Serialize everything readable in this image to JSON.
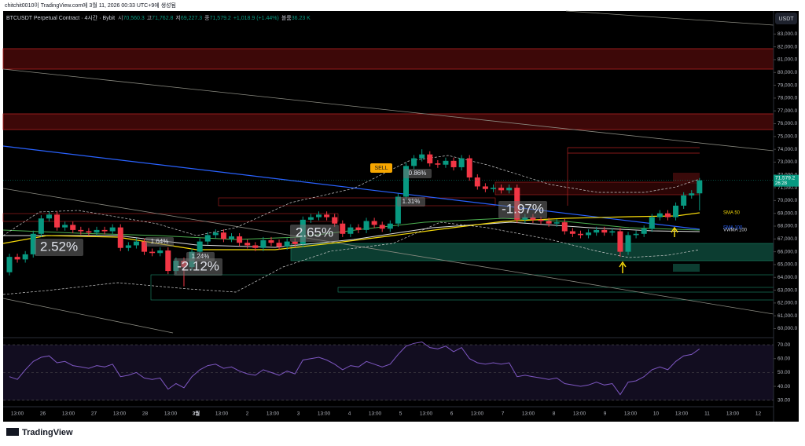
{
  "header": {
    "caption": "chitchit0010이 TradingView.com에 3월 11, 2026 00:33 UTC+9에 생성됨",
    "currency": "USDT",
    "brand": "TradingView"
  },
  "chart_data": {
    "type": "candlestick",
    "title": "BTCUSDT Perpetual Contract · 4시간 · Bybit",
    "legend": {
      "open_label": "시",
      "open": "70,560.3",
      "high_label": "고",
      "high": "71,762.8",
      "low_label": "저",
      "low": "69,227.3",
      "close_label": "종",
      "close": "71,579.2",
      "change": "+1,018.9 (+1.44%)",
      "volume_label": "볼륨",
      "volume": "36.23 K"
    },
    "x_labels": [
      "13:00",
      "26",
      "13:00",
      "27",
      "13:00",
      "28",
      "13:00",
      "3월",
      "13:00",
      "2",
      "13:00",
      "3",
      "13:00",
      "4",
      "13:00",
      "5",
      "13:00",
      "6",
      "13:00",
      "7",
      "13:00",
      "8",
      "13:00",
      "9",
      "13:00",
      "10",
      "13:00",
      "11",
      "13:00",
      "12"
    ],
    "open": [
      64400,
      65600,
      65400,
      65800,
      67400,
      68600,
      68900,
      67900,
      68100,
      67700,
      67600,
      67500,
      67700,
      67600,
      67900,
      66300,
      66500,
      66800,
      66000,
      65900,
      66100,
      64500,
      65300,
      64800,
      66000,
      66800,
      67300,
      67500,
      67000,
      67200,
      66700,
      66500,
      66300,
      66900,
      66700,
      66400,
      66800,
      66600,
      68500,
      68700,
      68900,
      68700,
      68200,
      67400,
      67900,
      67700,
      68400,
      68100,
      67800,
      68200,
      70300,
      72700,
      73300,
      73600,
      72900,
      72800,
      73100,
      72600,
      73300,
      71800,
      71100,
      70900,
      71000,
      70800,
      71000,
      68500,
      68700,
      68500,
      68400,
      68200,
      68300,
      67600,
      67400,
      67300,
      67500,
      67700,
      67500,
      67600,
      66000,
      67300,
      67400,
      67800,
      68700,
      69000,
      68700,
      69600,
      70400,
      70560.3
    ],
    "high": [
      65850,
      65850,
      66050,
      67650,
      68850,
      69150,
      69150,
      68350,
      68350,
      67950,
      67850,
      67950,
      67950,
      68150,
      68150,
      66750,
      67050,
      67050,
      66250,
      66350,
      66350,
      65550,
      65550,
      66250,
      67050,
      67550,
      67750,
      67750,
      67450,
      67450,
      66950,
      66750,
      67150,
      67150,
      66950,
      67050,
      67050,
      68750,
      68950,
      69150,
      69150,
      68950,
      68450,
      68150,
      68150,
      68650,
      68650,
      68350,
      68450,
      70550,
      72950,
      73550,
      74000,
      73850,
      73150,
      73350,
      73350,
      73550,
      73550,
      72050,
      71350,
      71250,
      71250,
      71250,
      71250,
      68950,
      68950,
      68750,
      68650,
      68550,
      68550,
      67850,
      67650,
      67750,
      67950,
      67950,
      67850,
      67850,
      67550,
      67650,
      68050,
      68950,
      69250,
      69250,
      69850,
      70650,
      70810.3,
      71762.8
    ],
    "low": [
      64150,
      65150,
      65150,
      65550,
      67150,
      68350,
      67650,
      67650,
      67450,
      67350,
      67250,
      67250,
      67350,
      67350,
      66050,
      66050,
      66250,
      65750,
      65650,
      65650,
      64250,
      64250,
      63300,
      64550,
      65750,
      66550,
      67050,
      66750,
      66750,
      66450,
      66250,
      66050,
      66050,
      66450,
      66150,
      66150,
      66350,
      66350,
      68250,
      68450,
      68450,
      67950,
      67150,
      67150,
      67450,
      67450,
      67850,
      67550,
      67550,
      67950,
      70050,
      72450,
      73050,
      72650,
      72550,
      72550,
      72350,
      72350,
      71550,
      70850,
      70650,
      70650,
      70550,
      70550,
      68250,
      68250,
      68250,
      68150,
      67950,
      67950,
      67350,
      67150,
      67050,
      67050,
      67250,
      67250,
      67250,
      65600,
      65750,
      67050,
      67150,
      67550,
      68450,
      68450,
      68450,
      69350,
      70150,
      69227.3
    ],
    "close": [
      65600,
      65400,
      65800,
      67400,
      68600,
      68900,
      67900,
      68100,
      67700,
      67600,
      67500,
      67700,
      67600,
      67900,
      66300,
      66500,
      66800,
      66000,
      65900,
      66100,
      64500,
      65300,
      64800,
      66000,
      66800,
      67300,
      67500,
      67000,
      67200,
      66700,
      66500,
      66300,
      66900,
      66700,
      66400,
      66800,
      66600,
      68500,
      68700,
      68900,
      68700,
      68200,
      67400,
      67900,
      67700,
      68400,
      68100,
      67800,
      68200,
      70300,
      72700,
      73300,
      73600,
      72900,
      72800,
      73100,
      72600,
      73300,
      71800,
      71100,
      70900,
      71000,
      70800,
      71000,
      68500,
      68700,
      68500,
      68400,
      68200,
      68300,
      67600,
      67400,
      67300,
      67500,
      67700,
      67500,
      67600,
      66000,
      67300,
      67400,
      67800,
      68700,
      69000,
      68700,
      69600,
      70400,
      70560.3,
      71579.2
    ],
    "up_color": "#089981",
    "down_color": "#f23645",
    "ylim": [
      59600,
      84800
    ],
    "yticks": [
      {
        "value": 60000,
        "label": "60,000.0"
      },
      {
        "value": 61000,
        "label": "61,000.0"
      },
      {
        "value": 62000,
        "label": "62,000.0"
      },
      {
        "value": 63000,
        "label": "63,000.0"
      },
      {
        "value": 64000,
        "label": "64,000.0"
      },
      {
        "value": 65000,
        "label": "65,000.0"
      },
      {
        "value": 66000,
        "label": "66,000.0"
      },
      {
        "value": 67000,
        "label": "67,000.0"
      },
      {
        "value": 68000,
        "label": "68,000.0"
      },
      {
        "value": 69000,
        "label": "69,000.0"
      },
      {
        "value": 70000,
        "label": "70,000.0"
      },
      {
        "value": 71000,
        "label": "71,000.0"
      },
      {
        "value": 72000,
        "label": "72,000.0"
      },
      {
        "value": 73000,
        "label": "73,000.0"
      },
      {
        "value": 74000,
        "label": "74,000.0"
      },
      {
        "value": 75000,
        "label": "75,000.0"
      },
      {
        "value": 76000,
        "label": "76,000.0"
      },
      {
        "value": 77000,
        "label": "77,000.0"
      },
      {
        "value": 78000,
        "label": "78,000.0"
      },
      {
        "value": 79000,
        "label": "79,000.0"
      },
      {
        "value": 80000,
        "label": "80,000.0"
      },
      {
        "value": 81000,
        "label": "81,000.0"
      },
      {
        "value": 82000,
        "label": "82,000.0"
      },
      {
        "value": 83000,
        "label": "83,000.0"
      }
    ],
    "last_price": {
      "label": "71,579.2",
      "countdown": "26:28"
    },
    "annotations": [
      "2.52%",
      "1.64%",
      "1.24%",
      "-2.12%",
      "2.65%",
      "1.31%",
      "0.86%",
      "-1.97%",
      "SELL"
    ],
    "indicator_labels": [
      "SMA 50",
      "VWMA 100",
      "SMA 100"
    ],
    "rsi": {
      "values": [
        47,
        45,
        52,
        58,
        61,
        62,
        57,
        58,
        55,
        54,
        53,
        55,
        54,
        56,
        47,
        48,
        50,
        46,
        45,
        46,
        38,
        42,
        39,
        47,
        52,
        55,
        56,
        53,
        54,
        51,
        49,
        48,
        52,
        50,
        48,
        51,
        49,
        59,
        60,
        61,
        59,
        56,
        52,
        55,
        54,
        58,
        56,
        54,
        56,
        63,
        69,
        71,
        72,
        68,
        67,
        69,
        65,
        68,
        60,
        57,
        56,
        57,
        56,
        57,
        47,
        48,
        47,
        46,
        45,
        46,
        42,
        41,
        40,
        41,
        43,
        41,
        42,
        34,
        43,
        44,
        47,
        52,
        54,
        52,
        58,
        62,
        63,
        67
      ],
      "color": "#7e57c2",
      "ylim": [
        27,
        74
      ],
      "yticks": [
        {
          "value": 30,
          "label": "30.00"
        },
        {
          "value": 40,
          "label": "40.00"
        },
        {
          "value": 50,
          "label": "50.00"
        },
        {
          "value": 60,
          "label": "60.00"
        },
        {
          "value": 70,
          "label": "70.00"
        }
      ]
    }
  }
}
